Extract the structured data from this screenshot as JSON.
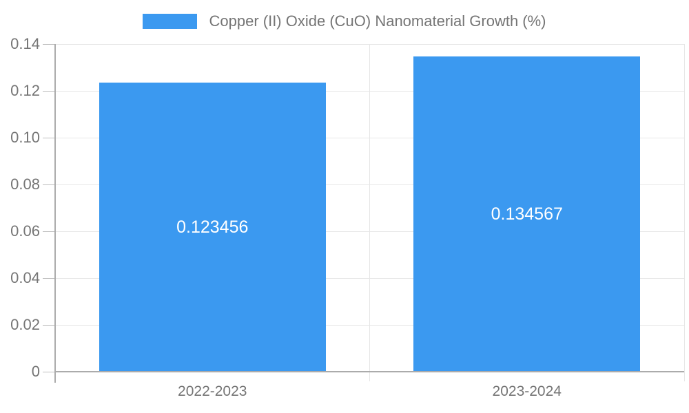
{
  "chart_data": {
    "type": "bar",
    "title": "",
    "categories": [
      "2022-2023",
      "2023-2024"
    ],
    "series": [
      {
        "name": "Copper (II) Oxide (CuO) Nanomaterial Growth (%)",
        "values": [
          0.123456,
          0.134567
        ],
        "color": "#3B99F0"
      }
    ],
    "value_labels": [
      "0.123456",
      "0.134567"
    ],
    "xlabel": "",
    "ylabel": "",
    "ylim": [
      0,
      0.14
    ],
    "y_ticks": [
      0,
      0.02,
      0.04,
      0.06,
      0.08,
      0.1,
      0.12,
      0.14
    ],
    "y_tick_labels": [
      "0",
      "0.02",
      "0.04",
      "0.06",
      "0.08",
      "0.10",
      "0.12",
      "0.14"
    ],
    "grid": true,
    "legend_position": "top-center",
    "colors": {
      "bar": "#3B99F0",
      "axis_line": "#ABABAB",
      "gridline": "#E6E6E6",
      "tick": "#BDBDBD",
      "text": "#757575",
      "bar_label": "#ffffff",
      "background": "#ffffff"
    }
  }
}
